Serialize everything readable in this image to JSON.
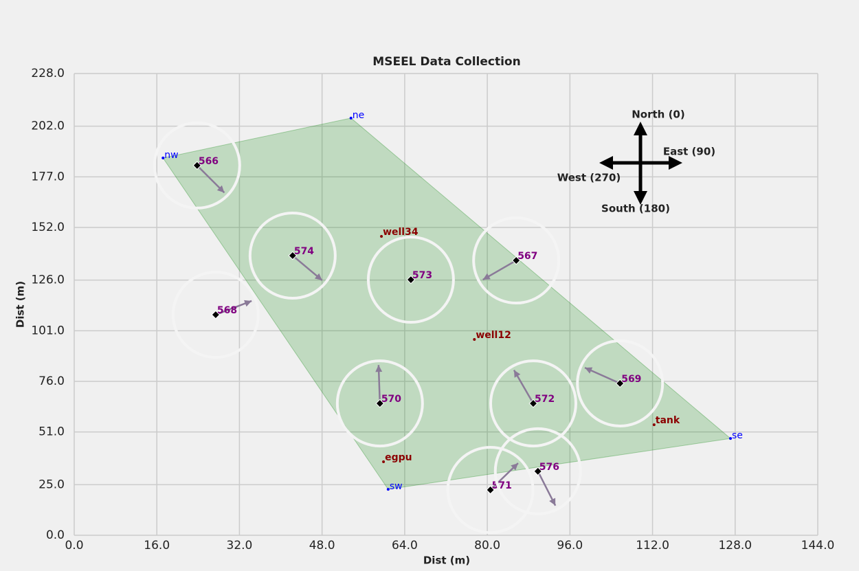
{
  "chart_data": {
    "type": "scatter",
    "title": "MSEEL Data Collection",
    "xlabel": "Dist (m)",
    "ylabel": "Dist (m)",
    "xlim": [
      0,
      144
    ],
    "ylim": [
      0,
      228
    ],
    "xticks": [
      {
        "value": 0,
        "label": "0.0"
      },
      {
        "value": 16,
        "label": "16.0"
      },
      {
        "value": 32,
        "label": "32.0"
      },
      {
        "value": 48,
        "label": "48.0"
      },
      {
        "value": 64,
        "label": "64.0"
      },
      {
        "value": 80,
        "label": "80.0"
      },
      {
        "value": 96,
        "label": "96.0"
      },
      {
        "value": 112,
        "label": "112.0"
      },
      {
        "value": 128,
        "label": "128.0"
      },
      {
        "value": 144,
        "label": "144.0"
      }
    ],
    "yticks": [
      {
        "value": 0,
        "label": "0.0"
      },
      {
        "value": 25,
        "label": "25.0"
      },
      {
        "value": 51,
        "label": "51.0"
      },
      {
        "value": 76,
        "label": "76.0"
      },
      {
        "value": 101,
        "label": "101.0"
      },
      {
        "value": 126,
        "label": "126.0"
      },
      {
        "value": 152,
        "label": "152.0"
      },
      {
        "value": 177,
        "label": "177.0"
      },
      {
        "value": 202,
        "label": "202.0"
      },
      {
        "value": 228,
        "label": "228.0"
      }
    ],
    "grid": true,
    "boundary": {
      "color": "#008000",
      "points": [
        {
          "label": "nw",
          "x": 17.2,
          "y": 186.3
        },
        {
          "label": "ne",
          "x": 53.6,
          "y": 206.0
        },
        {
          "label": "se",
          "x": 127.1,
          "y": 47.8
        },
        {
          "label": "sw",
          "x": 60.8,
          "y": 22.7
        }
      ]
    },
    "features": [
      {
        "label": "well34",
        "x": 59.5,
        "y": 147.6
      },
      {
        "label": "well12",
        "x": 77.5,
        "y": 96.7
      },
      {
        "label": "egpu",
        "x": 59.9,
        "y": 36.3
      },
      {
        "label": "tank",
        "x": 112.3,
        "y": 54.6
      }
    ],
    "stations": [
      {
        "label": "566",
        "x": 23.8,
        "y": 182.6,
        "azimuth": 135
      },
      {
        "label": "574",
        "x": 42.3,
        "y": 138.1,
        "azimuth": 130
      },
      {
        "label": "573",
        "x": 65.2,
        "y": 126.2
      },
      {
        "label": "567",
        "x": 85.6,
        "y": 135.7,
        "azimuth": 240
      },
      {
        "label": "568",
        "x": 27.4,
        "y": 108.9,
        "azimuth": 69
      },
      {
        "label": "570",
        "x": 59.2,
        "y": 65.1,
        "azimuth": 358
      },
      {
        "label": "572",
        "x": 88.9,
        "y": 65.1,
        "azimuth": 330
      },
      {
        "label": "569",
        "x": 105.7,
        "y": 75.0,
        "azimuth": 294
      },
      {
        "label": "571",
        "x": 80.6,
        "y": 22.4,
        "azimuth": 46
      },
      {
        "label": "576",
        "x": 89.8,
        "y": 31.6,
        "azimuth": 153
      }
    ],
    "compass": {
      "north": "North (0)",
      "east": "East (90)",
      "south": "South (180)",
      "west": "West (270)"
    }
  }
}
